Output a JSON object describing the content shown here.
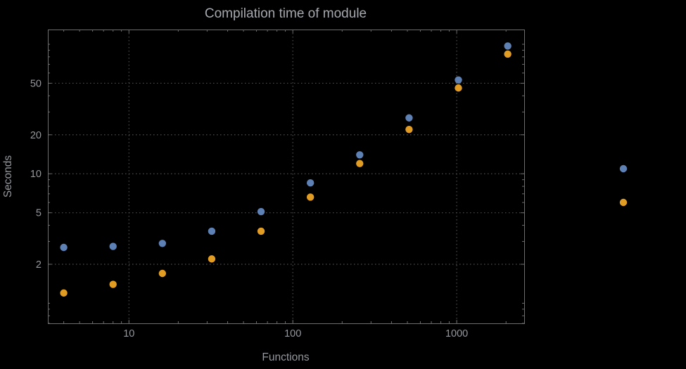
{
  "colors": {
    "background": "#000000",
    "frame": "#6e6e6e",
    "grid": "#4f4f4f",
    "text": "#94979c",
    "title": "#a4a8ae",
    "series_blue": "#5e81b5",
    "series_orange": "#e19c24"
  },
  "chart_data": {
    "type": "scatter",
    "title": "Compilation time of module",
    "xlabel": "Functions",
    "ylabel": "Seconds",
    "x_scale": "log",
    "y_scale": "log",
    "xlim": [
      3.2,
      2580
    ],
    "ylim": [
      0.7,
      130
    ],
    "grid": true,
    "x_ticks": [
      {
        "value": 10,
        "label": "10"
      },
      {
        "value": 100,
        "label": "100"
      },
      {
        "value": 1000,
        "label": "1000"
      }
    ],
    "y_ticks": [
      {
        "value": 2,
        "label": "2"
      },
      {
        "value": 5,
        "label": "5"
      },
      {
        "value": 10,
        "label": "10"
      },
      {
        "value": 20,
        "label": "20"
      },
      {
        "value": 50,
        "label": "50"
      }
    ],
    "x": [
      4,
      8,
      16,
      32,
      64,
      128,
      256,
      512,
      1024,
      2048
    ],
    "series": [
      {
        "name": "blue-series",
        "color": "#5e81b5",
        "values": [
          2.7,
          2.75,
          2.9,
          3.6,
          5.1,
          8.5,
          14,
          27,
          53,
          97
        ]
      },
      {
        "name": "orange-series",
        "color": "#e19c24",
        "values": [
          1.2,
          1.4,
          1.7,
          2.2,
          3.6,
          6.6,
          12,
          22,
          46,
          84
        ]
      }
    ],
    "legend": {
      "position": "right-center",
      "items": [
        {
          "color": "#5e81b5",
          "label": ""
        },
        {
          "color": "#e19c24",
          "label": ""
        }
      ]
    }
  }
}
